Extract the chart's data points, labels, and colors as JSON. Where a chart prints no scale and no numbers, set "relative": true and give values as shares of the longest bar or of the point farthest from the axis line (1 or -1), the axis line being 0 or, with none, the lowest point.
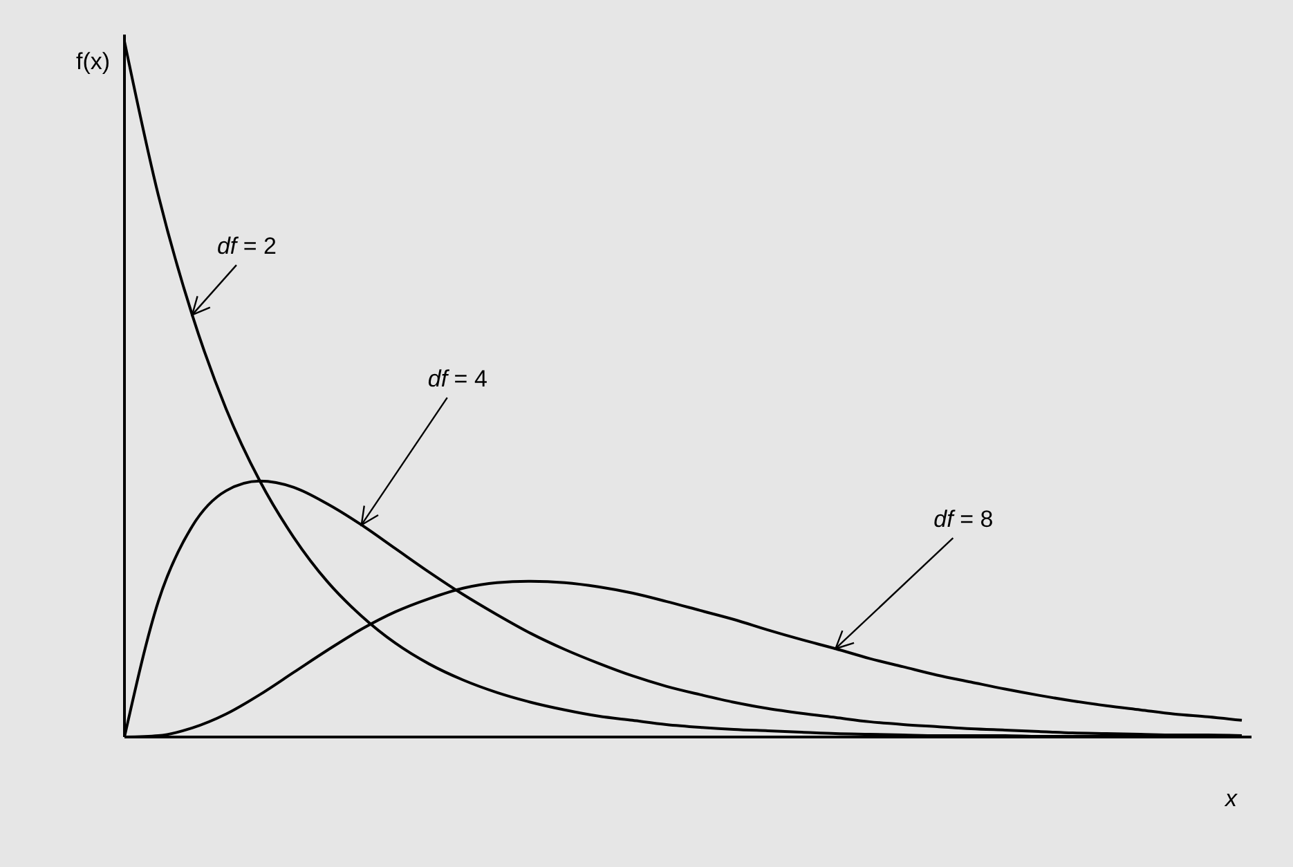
{
  "chart_data": {
    "type": "line",
    "relative": true,
    "xlabel": "x",
    "ylabel": "f(x)",
    "legend": false,
    "marker": "none",
    "line_style": "solid",
    "categories": [
      null,
      null,
      null,
      null,
      null,
      null,
      null,
      null,
      null,
      null,
      null,
      null,
      null,
      null,
      null,
      null,
      null,
      null,
      null,
      null,
      null,
      null,
      null,
      null,
      null,
      null,
      null,
      null,
      null,
      null,
      null,
      null,
      null,
      null
    ],
    "series": [
      {
        "name": "df = 2",
        "color": "#000000",
        "values": [
          1,
          0.779,
          0.607,
          0.472,
          0.368,
          0.287,
          0.223,
          0.174,
          0.135,
          0.105,
          0.082,
          0.064,
          0.05,
          0.039,
          0.03,
          0.024,
          0.018,
          0.014,
          0.011,
          0.009,
          0.007,
          0.005,
          0.004,
          0.003,
          0.002,
          0.002,
          0.002,
          0.001,
          0.001,
          0.001,
          0.001,
          0,
          0,
          0
        ]
      },
      {
        "name": "df = 4",
        "color": "#000000",
        "values": [
          0,
          0.195,
          0.303,
          0.354,
          0.368,
          0.359,
          0.335,
          0.305,
          0.271,
          0.237,
          0.205,
          0.176,
          0.149,
          0.126,
          0.106,
          0.088,
          0.073,
          0.061,
          0.05,
          0.041,
          0.034,
          0.028,
          0.022,
          0.018,
          0.015,
          0.012,
          0.01,
          0.008,
          0.006,
          0.005,
          0.004,
          0.003,
          0.003,
          0.002
        ]
      },
      {
        "name": "df = 8",
        "color": "#000000",
        "values": [
          0,
          0.002,
          0.013,
          0.033,
          0.061,
          0.093,
          0.125,
          0.155,
          0.18,
          0.199,
          0.214,
          0.222,
          0.224,
          0.222,
          0.216,
          0.207,
          0.195,
          0.182,
          0.169,
          0.154,
          0.14,
          0.127,
          0.113,
          0.101,
          0.089,
          0.079,
          0.069,
          0.06,
          0.052,
          0.045,
          0.039,
          0.033,
          0.029,
          0.024
        ]
      }
    ]
  }
}
